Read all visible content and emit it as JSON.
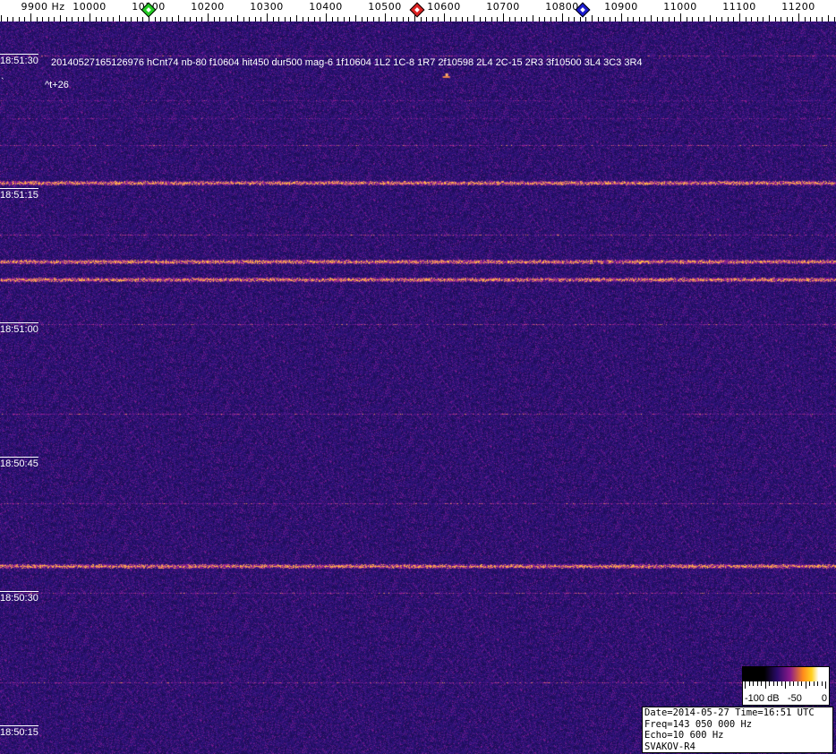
{
  "chart_data": {
    "type": "heatmap",
    "title": "",
    "x_axis": {
      "unit": "Hz",
      "range": [
        9900,
        11250
      ],
      "tick_labels": [
        "9900",
        "10000",
        "10100",
        "10200",
        "10300",
        "10400",
        "10500",
        "10600",
        "10700",
        "10800",
        "10900",
        "11000",
        "11100",
        "11200"
      ],
      "first_label_suffix": "Hz"
    },
    "y_axis": {
      "time_labels": [
        "18:51:30",
        "18:51:15",
        "18:51:00",
        "18:50:45",
        "18:50:30",
        "18:50:15"
      ]
    },
    "markers": [
      {
        "freq": 10100,
        "color": "#22cc22"
      },
      {
        "freq": 10555,
        "color": "#dd2222"
      },
      {
        "freq": 10835,
        "color": "#1a1acc"
      }
    ],
    "horizontal_bands_time": [
      "18:51:15",
      "18:51:07",
      "18:51:05",
      "18:50:33"
    ],
    "detection": {
      "freq": 10604,
      "time": "18:51:28"
    },
    "colorbar": {
      "labels": [
        "-100 dB",
        "-50",
        "0"
      ],
      "range_db": [
        -100,
        0
      ]
    }
  },
  "annotation": {
    "line1": "20140527165126976 hCnt74 nb-80 f10604 hit450 dur500 mag-6 1f10604 1L2 1C-8 1R7 2f10598 2L4 2C-15 2R3 3f10500 3L4 3C3 3R4",
    "line2": "^t+26",
    "mark": "`"
  },
  "info": {
    "date": "Date=2014-05-27 Time=16:51 UTC",
    "freq": "Freq=143 050 000 Hz",
    "echo": "Echo=10 600 Hz",
    "station": "SVAKOV-R4"
  }
}
